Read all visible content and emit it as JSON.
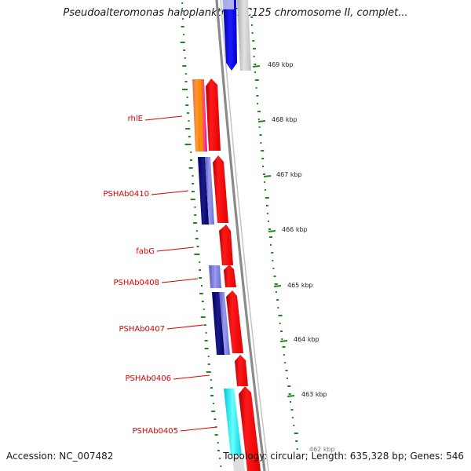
{
  "title": "Pseudoalteromonas haloplanktis TAC125 chromosome II, complet...",
  "footer": {
    "accession": "Accession: NC_007482",
    "stats": "Topology: circular; Length: 635,328 bp; Genes: 546"
  },
  "scale_labels": [
    "469 kbp",
    "468 kbp",
    "467 kbp",
    "466 kbp",
    "465 kbp",
    "464 kbp",
    "463 kbp",
    "462 kbp"
  ],
  "gene_labels": [
    "rhlE",
    "PSHAb0410",
    "fabG",
    "PSHAb0408",
    "PSHAb0407",
    "PSHAb0406",
    "PSHAb0405"
  ],
  "colors": {
    "forward_cds": "#ff0000",
    "reverse_cds": "#0000dd",
    "backbone": "#888888",
    "gc_skew_ticks": "#1a8a1a",
    "gene_label": "#e00000"
  }
}
